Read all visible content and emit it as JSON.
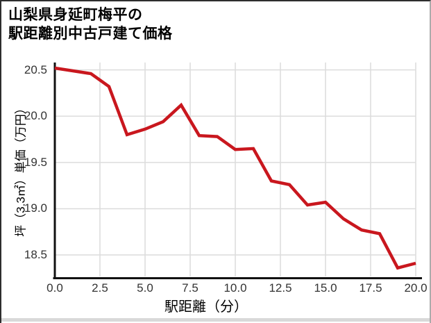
{
  "title": {
    "line1": "山梨県身延町梅平の",
    "line2": "駅距離別中古戸建て価格"
  },
  "chart_data": {
    "type": "line",
    "title": "山梨県身延町梅平の駅距離別中古戸建て価格",
    "xlabel": "駅距離（分）",
    "ylabel": "坪（3.3㎡）単価（万円）",
    "x": [
      0,
      1,
      2,
      3,
      4,
      5,
      6,
      7,
      8,
      9,
      10,
      11,
      12,
      13,
      14,
      15,
      16,
      17,
      18,
      19,
      20
    ],
    "y": [
      20.52,
      20.49,
      20.46,
      20.32,
      19.8,
      19.86,
      19.94,
      20.12,
      19.79,
      19.78,
      19.64,
      19.65,
      19.3,
      19.26,
      19.04,
      19.07,
      18.89,
      18.77,
      18.73,
      18.36,
      18.41
    ],
    "xlim": [
      0,
      20
    ],
    "ylim": [
      18.26,
      20.58
    ],
    "xticks": [
      0,
      2.5,
      5,
      7.5,
      10,
      12.5,
      15,
      17.5,
      20
    ],
    "xtick_labels": [
      "0.0",
      "2.5",
      "5.0",
      "7.5",
      "10.0",
      "12.5",
      "15.0",
      "17.5",
      "20.0"
    ],
    "yticks": [
      20.5,
      20.0,
      19.5,
      19.0,
      18.5
    ],
    "ytick_labels": [
      "20.5",
      "20.0",
      "19.5",
      "19.0",
      "18.5"
    ],
    "grid": true,
    "legend": false,
    "line_color": "#c9171e",
    "grid_color": "#dcdcdc",
    "axis_color": "#111111",
    "tick_color": "#333333"
  }
}
